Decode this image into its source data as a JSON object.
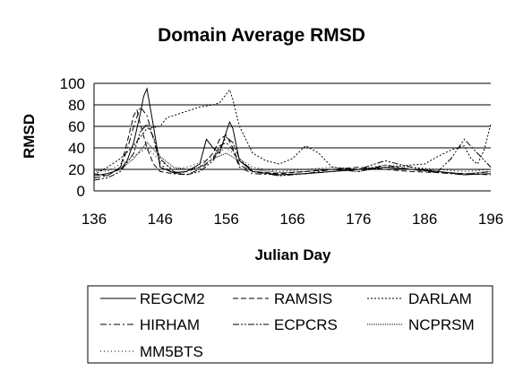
{
  "chart_data": {
    "type": "line",
    "title": "Domain Average RMSD",
    "xlabel": "Julian Day",
    "ylabel": "RMSD",
    "xlim": [
      136,
      196
    ],
    "ylim": [
      0,
      100
    ],
    "xticks": [
      136,
      146,
      156,
      166,
      176,
      186,
      196
    ],
    "yticks": [
      0,
      20,
      40,
      60,
      80,
      100
    ],
    "grid": "horizontal",
    "legend": "bottom",
    "series": [
      {
        "name": "REGCM2",
        "style": "solid",
        "x": [
          136,
          138,
          140,
          141,
          142,
          143,
          143.5,
          144,
          145,
          146,
          148,
          150,
          152,
          153,
          154,
          155,
          156,
          156.5,
          157,
          158,
          160,
          164,
          168,
          172,
          176,
          180,
          184,
          188,
          192,
          196
        ],
        "y": [
          14,
          16,
          20,
          28,
          45,
          72,
          88,
          95,
          60,
          22,
          17,
          18,
          25,
          48,
          40,
          35,
          55,
          64,
          58,
          28,
          18,
          15,
          16,
          18,
          20,
          22,
          20,
          18,
          15,
          16
        ]
      },
      {
        "name": "RAMSIS",
        "style": "dashed",
        "x": [
          136,
          138,
          140,
          141,
          142,
          142.5,
          143,
          144,
          145,
          146,
          148,
          150,
          152,
          154,
          155,
          156,
          157,
          158,
          160,
          164,
          168,
          172,
          176,
          180,
          184,
          188,
          192,
          196
        ],
        "y": [
          16,
          14,
          22,
          45,
          70,
          75,
          62,
          40,
          25,
          18,
          16,
          18,
          22,
          35,
          48,
          52,
          40,
          24,
          18,
          16,
          18,
          20,
          22,
          20,
          18,
          17,
          16,
          15
        ]
      },
      {
        "name": "DARLAM",
        "style": "dotted",
        "x": [
          136,
          138,
          140,
          142,
          144,
          146,
          147,
          148,
          150,
          152,
          154,
          155,
          156,
          156.5,
          157,
          158,
          160,
          162,
          164,
          166,
          168,
          170,
          172,
          176,
          180,
          184,
          186,
          188,
          190,
          192,
          193,
          194,
          195,
          196
        ],
        "y": [
          15,
          22,
          30,
          42,
          58,
          60,
          68,
          70,
          74,
          78,
          80,
          82,
          90,
          94,
          85,
          60,
          35,
          28,
          25,
          30,
          42,
          35,
          22,
          20,
          22,
          24,
          25,
          32,
          38,
          42,
          30,
          25,
          38,
          62
        ]
      },
      {
        "name": "HIRHAM",
        "style": "dashdot",
        "x": [
          136,
          138,
          140,
          141,
          142,
          143,
          144,
          145,
          146,
          148,
          150,
          152,
          154,
          155,
          156,
          157,
          158,
          160,
          164,
          168,
          172,
          176,
          180,
          184,
          188,
          192,
          196
        ],
        "y": [
          12,
          14,
          22,
          38,
          60,
          78,
          70,
          48,
          25,
          16,
          15,
          20,
          30,
          42,
          45,
          38,
          22,
          16,
          15,
          16,
          20,
          18,
          24,
          20,
          17,
          15,
          18
        ]
      },
      {
        "name": "ECPCRS",
        "style": "dashdotdot",
        "x": [
          136,
          138,
          140,
          142,
          143,
          144,
          145,
          146,
          148,
          150,
          152,
          154,
          156,
          157,
          158,
          160,
          164,
          168,
          172,
          176,
          180,
          184,
          188,
          190,
          192,
          194,
          196
        ],
        "y": [
          10,
          12,
          18,
          35,
          55,
          62,
          50,
          30,
          18,
          15,
          18,
          28,
          50,
          45,
          30,
          18,
          14,
          16,
          18,
          20,
          28,
          22,
          18,
          30,
          48,
          35,
          22
        ]
      },
      {
        "name": "NCPRSM",
        "style": "densedot",
        "x": [
          136,
          138,
          140,
          142,
          144,
          146,
          148,
          150,
          152,
          154,
          156,
          158,
          160,
          164,
          168,
          172,
          176,
          180,
          184,
          188,
          192,
          196
        ],
        "y": [
          18,
          20,
          20,
          30,
          45,
          32,
          22,
          20,
          22,
          30,
          35,
          28,
          20,
          17,
          18,
          20,
          18,
          22,
          20,
          18,
          16,
          18
        ]
      },
      {
        "name": "MM5BTS",
        "style": "sparsedot",
        "x": [
          136,
          138,
          140,
          142,
          144,
          146,
          148,
          150,
          152,
          154,
          156,
          158,
          160,
          164,
          168,
          172,
          176,
          180,
          184,
          188,
          192,
          196
        ],
        "y": [
          20,
          18,
          25,
          32,
          40,
          28,
          20,
          22,
          26,
          32,
          40,
          30,
          22,
          18,
          20,
          22,
          20,
          24,
          22,
          20,
          18,
          20
        ]
      }
    ]
  }
}
